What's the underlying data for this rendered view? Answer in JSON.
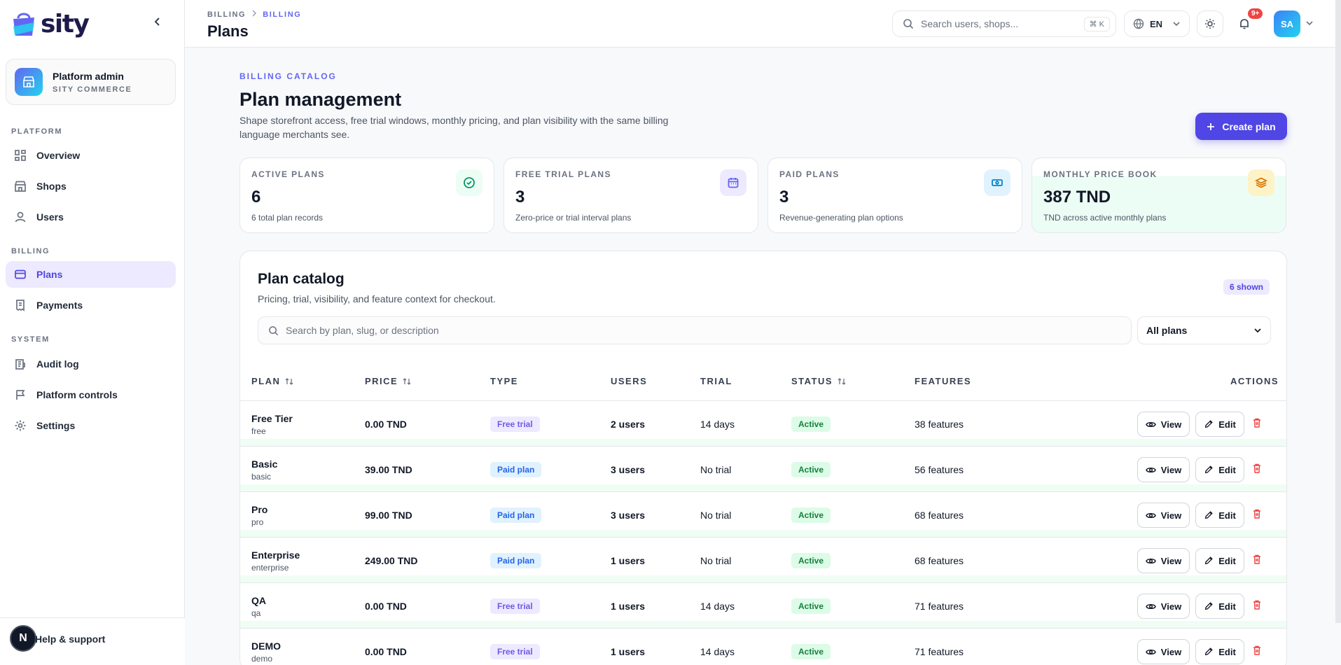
{
  "app": {
    "logo_text": "sity"
  },
  "sidebar": {
    "admin_name": "Platform admin",
    "admin_sub": "SITY COMMERCE",
    "sections": {
      "platform": "PLATFORM",
      "billing": "BILLING",
      "system": "SYSTEM"
    },
    "items": [
      {
        "label": "Overview",
        "icon": "grid-icon"
      },
      {
        "label": "Shops",
        "icon": "store-icon"
      },
      {
        "label": "Users",
        "icon": "user-icon"
      },
      {
        "label": "Plans",
        "icon": "card-icon",
        "active": true
      },
      {
        "label": "Payments",
        "icon": "receipt-icon"
      },
      {
        "label": "Audit log",
        "icon": "log-icon"
      },
      {
        "label": "Platform controls",
        "icon": "flag-icon"
      },
      {
        "label": "Settings",
        "icon": "gear-icon"
      }
    ],
    "help_icon_letter": "N",
    "help_label": "Help & support"
  },
  "header": {
    "breadcrumb": [
      "BILLING",
      "BILLING"
    ],
    "title": "Plans",
    "search_placeholder": "Search users, shops...",
    "search_shortcut": "⌘ K",
    "language": "EN",
    "notification_count": "9+",
    "avatar_initials": "SA"
  },
  "main": {
    "eyebrow": "BILLING CATALOG",
    "title": "Plan management",
    "description": "Shape storefront access, free trial windows, monthly pricing, and plan visibility with the same billing language merchants see.",
    "create_label": "Create plan"
  },
  "stats": [
    {
      "label": "ACTIVE PLANS",
      "value": "6",
      "sub": "6 total plan records",
      "icon": "check-circle-icon",
      "color": "#059669",
      "bg": "#ecfdf5"
    },
    {
      "label": "FREE TRIAL PLANS",
      "value": "3",
      "sub": "Zero-price or trial interval plans",
      "icon": "calendar-icon",
      "color": "#6366f1",
      "bg": "#ede9fe"
    },
    {
      "label": "PAID PLANS",
      "value": "3",
      "sub": "Revenue-generating plan options",
      "icon": "banknote-icon",
      "color": "#0284c7",
      "bg": "#e0f2fe"
    },
    {
      "label": "MONTHLY PRICE BOOK",
      "value": "387 TND",
      "sub": "TND across active monthly plans",
      "icon": "layers-icon",
      "color": "#d97706",
      "bg": "#fef3c7"
    }
  ],
  "catalog": {
    "title": "Plan catalog",
    "subtitle": "Pricing, trial, visibility, and feature context for checkout.",
    "shown_badge": "6 shown",
    "search_placeholder": "Search by plan, slug, or description",
    "filter_value": "All plans",
    "columns": {
      "plan": "PLAN",
      "price": "PRICE",
      "type": "TYPE",
      "users": "USERS",
      "trial": "TRIAL",
      "status": "STATUS",
      "features": "FEATURES",
      "actions": "ACTIONS"
    },
    "view_label": "View",
    "edit_label": "Edit",
    "rows": [
      {
        "name": "Free Tier",
        "slug": "free",
        "price": "0.00 TND",
        "type": "Free trial",
        "users": "2 users",
        "trial": "14 days",
        "status": "Active",
        "features": "38 features"
      },
      {
        "name": "Basic",
        "slug": "basic",
        "price": "39.00 TND",
        "type": "Paid plan",
        "users": "3 users",
        "trial": "No trial",
        "status": "Active",
        "features": "56 features"
      },
      {
        "name": "Pro",
        "slug": "pro",
        "price": "99.00 TND",
        "type": "Paid plan",
        "users": "3 users",
        "trial": "No trial",
        "status": "Active",
        "features": "68 features"
      },
      {
        "name": "Enterprise",
        "slug": "enterprise",
        "price": "249.00 TND",
        "type": "Paid plan",
        "users": "1 users",
        "trial": "No trial",
        "status": "Active",
        "features": "68 features"
      },
      {
        "name": "QA",
        "slug": "qa",
        "price": "0.00 TND",
        "type": "Free trial",
        "users": "1 users",
        "trial": "14 days",
        "status": "Active",
        "features": "71 features"
      },
      {
        "name": "DEMO",
        "slug": "demo",
        "price": "0.00 TND",
        "type": "Free trial",
        "users": "1 users",
        "trial": "14 days",
        "status": "Active",
        "features": "71 features"
      }
    ]
  }
}
